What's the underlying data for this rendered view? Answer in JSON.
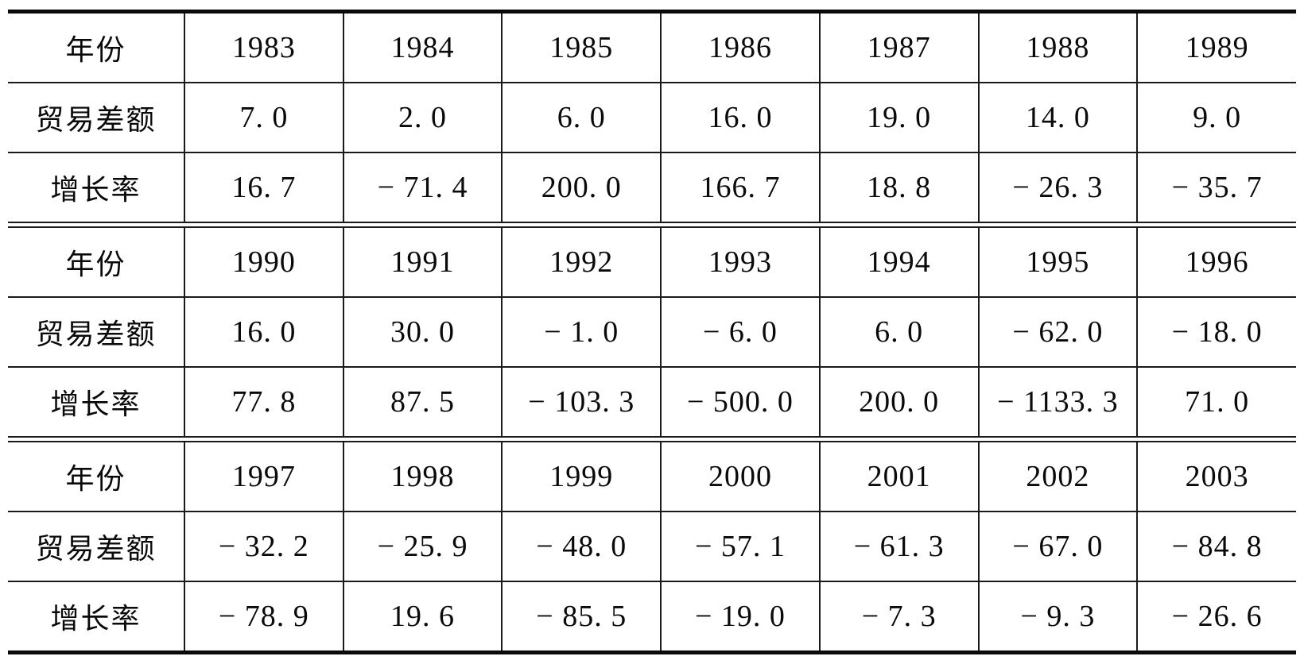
{
  "table": {
    "row_labels": {
      "year": "年份",
      "trade_balance": "贸易差额",
      "growth_rate": "增长率"
    },
    "sections": [
      {
        "rows": [
          {
            "label": "年份",
            "values": [
              "1983",
              "1984",
              "1985",
              "1986",
              "1987",
              "1988",
              "1989"
            ]
          },
          {
            "label": "贸易差额",
            "values": [
              "7. 0",
              "2. 0",
              "6. 0",
              "16. 0",
              "19. 0",
              "14. 0",
              "9. 0"
            ]
          },
          {
            "label": "增长率",
            "values": [
              "16. 7",
              "− 71. 4",
              "200. 0",
              "166. 7",
              "18. 8",
              "− 26. 3",
              "− 35. 7"
            ]
          }
        ]
      },
      {
        "rows": [
          {
            "label": "年份",
            "values": [
              "1990",
              "1991",
              "1992",
              "1993",
              "1994",
              "1995",
              "1996"
            ]
          },
          {
            "label": "贸易差额",
            "values": [
              "16. 0",
              "30. 0",
              "− 1. 0",
              "− 6. 0",
              "6. 0",
              "− 62. 0",
              "− 18. 0"
            ]
          },
          {
            "label": "增长率",
            "values": [
              "77. 8",
              "87. 5",
              "− 103. 3",
              "− 500. 0",
              "200. 0",
              "− 1133. 3",
              "71. 0"
            ]
          }
        ]
      },
      {
        "rows": [
          {
            "label": "年份",
            "values": [
              "1997",
              "1998",
              "1999",
              "2000",
              "2001",
              "2002",
              "2003"
            ]
          },
          {
            "label": "贸易差额",
            "values": [
              "− 32. 2",
              "− 25. 9",
              "− 48. 0",
              "− 57. 1",
              "− 61. 3",
              "− 67. 0",
              "− 84. 8"
            ]
          },
          {
            "label": "增长率",
            "values": [
              "− 78. 9",
              "19. 6",
              "− 85. 5",
              "− 19. 0",
              "− 7. 3",
              "− 9. 3",
              "− 26. 6"
            ]
          }
        ]
      }
    ]
  },
  "chart_data": {
    "type": "table",
    "row_labels": [
      "年份",
      "贸易差额",
      "增长率"
    ],
    "years": [
      1983,
      1984,
      1985,
      1986,
      1987,
      1988,
      1989,
      1990,
      1991,
      1992,
      1993,
      1994,
      1995,
      1996,
      1997,
      1998,
      1999,
      2000,
      2001,
      2002,
      2003
    ],
    "trade_balance": [
      7.0,
      2.0,
      6.0,
      16.0,
      19.0,
      14.0,
      9.0,
      16.0,
      30.0,
      -1.0,
      -6.0,
      6.0,
      -62.0,
      -18.0,
      -32.2,
      -25.9,
      -48.0,
      -57.1,
      -61.3,
      -67.0,
      -84.8
    ],
    "growth_rate": [
      16.7,
      -71.4,
      200.0,
      166.7,
      18.8,
      -26.3,
      -35.7,
      77.8,
      87.5,
      -103.3,
      -500.0,
      200.0,
      -1133.3,
      71.0,
      -78.9,
      19.6,
      -85.5,
      -19.0,
      -7.3,
      -9.3,
      -26.6
    ],
    "colors": {
      "ink": "#0a0a0a",
      "background": "#ffffff"
    }
  }
}
